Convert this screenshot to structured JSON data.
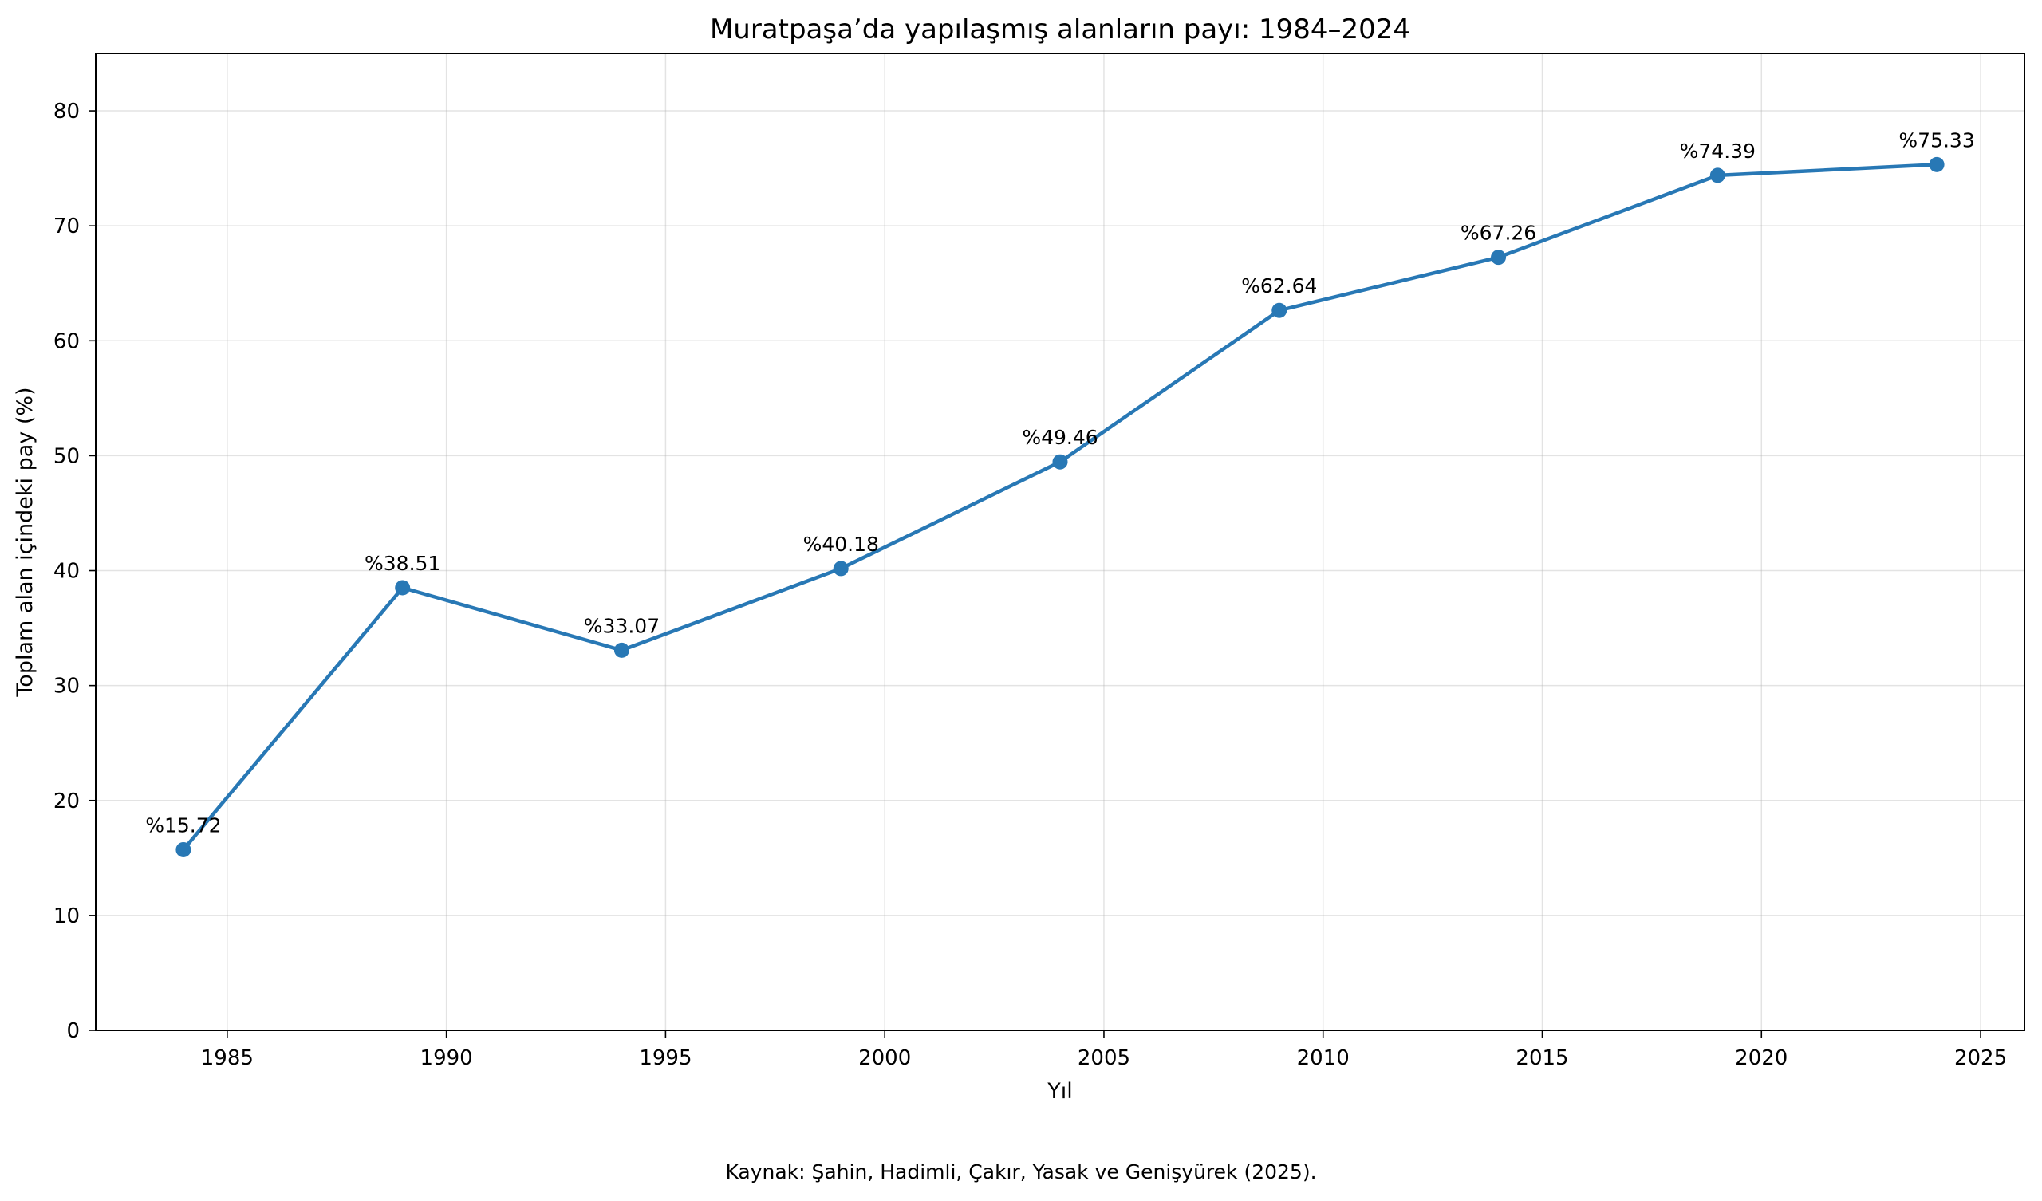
{
  "chart_data": {
    "type": "line",
    "title": "Muratpaşa’da yapılaşmış alanların payı: 1984–2024",
    "xlabel": "Yıl",
    "ylabel": "Toplam alan içindeki pay (%)",
    "x": [
      1984,
      1989,
      1994,
      1999,
      2004,
      2009,
      2014,
      2019,
      2024
    ],
    "series": [
      {
        "values": [
          15.72,
          38.51,
          33.07,
          40.18,
          49.46,
          62.64,
          67.26,
          74.39,
          75.33
        ],
        "color": "#2878b5"
      }
    ],
    "data_labels": [
      "%15.72",
      "%38.51",
      "%33.07",
      "%40.18",
      "%49.46",
      "%62.64",
      "%67.26",
      "%74.39",
      "%75.33"
    ],
    "xlim": [
      1982,
      2026
    ],
    "ylim": [
      0,
      85
    ],
    "xticks": [
      1985,
      1990,
      1995,
      2000,
      2005,
      2010,
      2015,
      2020,
      2025
    ],
    "yticks": [
      0,
      10,
      20,
      30,
      40,
      50,
      60,
      70,
      80
    ],
    "grid": true,
    "legend": "none"
  },
  "footer": {
    "source": "Kaynak: Şahin, Hadimli, Çakır, Yasak ve Genişyürek (2025)."
  }
}
